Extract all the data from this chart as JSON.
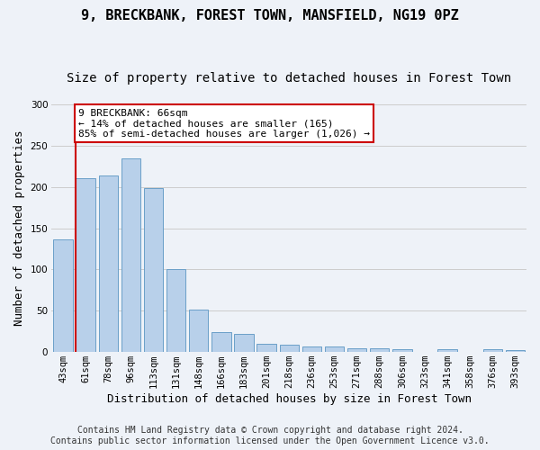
{
  "title": "9, BRECKBANK, FOREST TOWN, MANSFIELD, NG19 0PZ",
  "subtitle": "Size of property relative to detached houses in Forest Town",
  "xlabel": "Distribution of detached houses by size in Forest Town",
  "ylabel": "Number of detached properties",
  "footer_line1": "Contains HM Land Registry data © Crown copyright and database right 2024.",
  "footer_line2": "Contains public sector information licensed under the Open Government Licence v3.0.",
  "bar_labels": [
    "43sqm",
    "61sqm",
    "78sqm",
    "96sqm",
    "113sqm",
    "131sqm",
    "148sqm",
    "166sqm",
    "183sqm",
    "201sqm",
    "218sqm",
    "236sqm",
    "253sqm",
    "271sqm",
    "288sqm",
    "306sqm",
    "323sqm",
    "341sqm",
    "358sqm",
    "376sqm",
    "393sqm"
  ],
  "bar_values": [
    136,
    211,
    214,
    235,
    199,
    101,
    51,
    24,
    22,
    10,
    9,
    7,
    7,
    5,
    4,
    3,
    0,
    3,
    0,
    3,
    2
  ],
  "bar_color": "#b8d0ea",
  "bar_edge_color": "#6a9fc8",
  "annotation_line1": "9 BRECKBANK: 66sqm",
  "annotation_line2": "← 14% of detached houses are smaller (165)",
  "annotation_line3": "85% of semi-detached houses are larger (1,026) →",
  "annotation_box_facecolor": "#ffffff",
  "annotation_box_edgecolor": "#cc0000",
  "vline_color": "#cc0000",
  "vline_x_index": 1,
  "ylim": [
    0,
    300
  ],
  "yticks": [
    0,
    50,
    100,
    150,
    200,
    250,
    300
  ],
  "grid_color": "#cccccc",
  "background_color": "#eef2f8",
  "title_fontsize": 11,
  "subtitle_fontsize": 10,
  "ylabel_fontsize": 9,
  "xlabel_fontsize": 9,
  "tick_fontsize": 7.5,
  "annot_fontsize": 8,
  "footer_fontsize": 7
}
